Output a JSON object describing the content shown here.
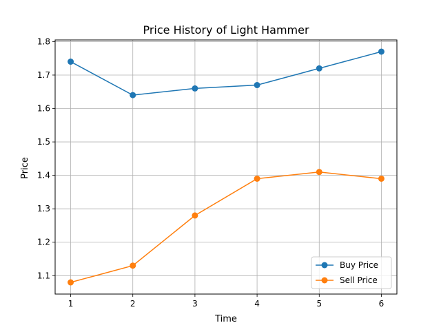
{
  "chart_data": {
    "type": "line",
    "title": "Price History of Light Hammer",
    "xlabel": "Time",
    "ylabel": "Price",
    "x": [
      1,
      2,
      3,
      4,
      5,
      6
    ],
    "x_ticks": [
      "1",
      "2",
      "3",
      "4",
      "5",
      "6"
    ],
    "y_ticks": [
      "1.1",
      "1.2",
      "1.3",
      "1.4",
      "1.5",
      "1.6",
      "1.7",
      "1.8"
    ],
    "xlim": [
      0.75,
      6.25
    ],
    "ylim": [
      1.045,
      1.805
    ],
    "grid": true,
    "legend_position": "bottom-right",
    "series": [
      {
        "name": "Buy Price",
        "color": "#1f77b4",
        "marker": "circle",
        "values": [
          1.74,
          1.64,
          1.66,
          1.67,
          1.72,
          1.77
        ]
      },
      {
        "name": "Sell Price",
        "color": "#ff7f0e",
        "marker": "circle",
        "values": [
          1.08,
          1.13,
          1.28,
          1.39,
          1.41,
          1.39
        ]
      }
    ]
  }
}
